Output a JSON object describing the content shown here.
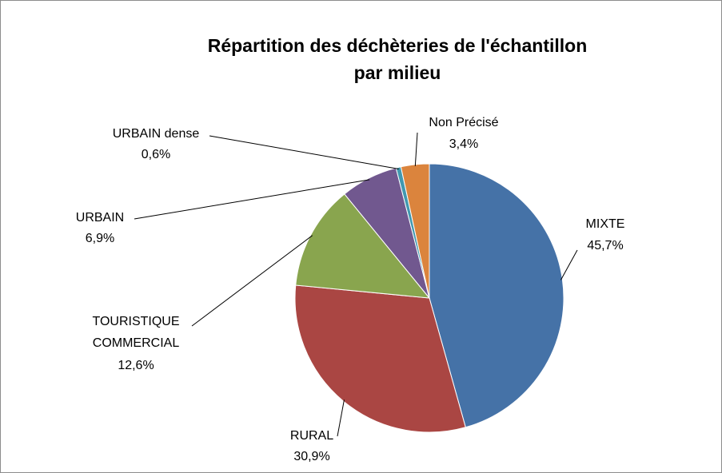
{
  "chart_data": {
    "type": "pie",
    "title": "Répartition des déchèteries de l'échantillon",
    "subtitle": "par milieu",
    "categories": [
      "MIXTE",
      "RURAL",
      "TOURISTIQUE COMMERCIAL",
      "URBAIN",
      "URBAIN dense",
      "Non Précisé"
    ],
    "values": [
      45.7,
      30.9,
      12.6,
      6.9,
      0.6,
      3.4
    ],
    "value_labels": [
      "45,7%",
      "30,9%",
      "12,6%",
      "6,9%",
      "0,6%",
      "3,4%"
    ],
    "colors": [
      "#4572a7",
      "#aa4643",
      "#89a54e",
      "#71588f",
      "#4198af",
      "#db843d"
    ]
  }
}
